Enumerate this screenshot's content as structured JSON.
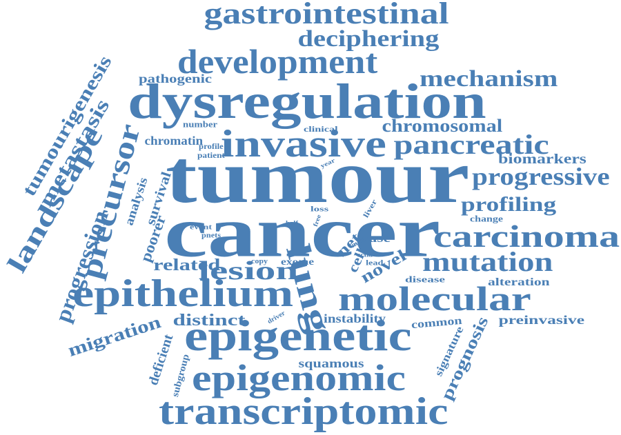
{
  "colors": {
    "word": "#4a7fb5",
    "background": "#ffffff"
  },
  "words": [
    {
      "text": "tumour",
      "weight": 1.0
    },
    {
      "text": "cancer",
      "weight": 0.97
    },
    {
      "text": "dysregulation",
      "weight": 0.7
    },
    {
      "text": "epigenetic",
      "weight": 0.5
    },
    {
      "text": "invasive",
      "weight": 0.46
    },
    {
      "text": "transcriptomic",
      "weight": 0.44
    },
    {
      "text": "epithelium",
      "weight": 0.44
    },
    {
      "text": "epigenomic",
      "weight": 0.42
    },
    {
      "text": "development",
      "weight": 0.4
    },
    {
      "text": "lung",
      "weight": 0.42
    },
    {
      "text": "molecular",
      "weight": 0.4
    },
    {
      "text": "carcinoma",
      "weight": 0.36
    },
    {
      "text": "gastrointestinal",
      "weight": 0.36
    },
    {
      "text": "precursor",
      "weight": 0.34
    },
    {
      "text": "landscape",
      "weight": 0.3
    },
    {
      "text": "mutation",
      "weight": 0.3
    },
    {
      "text": "pancreatic",
      "weight": 0.3
    },
    {
      "text": "lesion",
      "weight": 0.28
    },
    {
      "text": "progressive",
      "weight": 0.26
    },
    {
      "text": "deciphering",
      "weight": 0.25
    },
    {
      "text": "mechanism",
      "weight": 0.24
    },
    {
      "text": "progression",
      "weight": 0.24
    },
    {
      "text": "metastasis",
      "weight": 0.22
    },
    {
      "text": "tumourigenesis",
      "weight": 0.2
    },
    {
      "text": "profiling",
      "weight": 0.2
    },
    {
      "text": "chromosomal",
      "weight": 0.18
    },
    {
      "text": "migration",
      "weight": 0.18
    },
    {
      "text": "distinct",
      "weight": 0.17
    },
    {
      "text": "related",
      "weight": 0.17
    },
    {
      "text": "prognosis",
      "weight": 0.17
    },
    {
      "text": "novel",
      "weight": 0.16
    },
    {
      "text": "poorer",
      "weight": 0.15
    },
    {
      "text": "biomarkers",
      "weight": 0.14
    },
    {
      "text": "squamous",
      "weight": 0.14
    },
    {
      "text": "survival",
      "weight": 0.14
    },
    {
      "text": "pathogenic",
      "weight": 0.14
    },
    {
      "text": "chromatin",
      "weight": 0.14
    },
    {
      "text": "deficient",
      "weight": 0.14
    },
    {
      "text": "preinvasive",
      "weight": 0.14
    },
    {
      "text": "net",
      "weight": 0.14
    },
    {
      "text": "instability",
      "weight": 0.13
    },
    {
      "text": "analysis",
      "weight": 0.13
    },
    {
      "text": "case",
      "weight": 0.13
    },
    {
      "text": "exome",
      "weight": 0.12
    },
    {
      "text": "cell",
      "weight": 0.12
    },
    {
      "text": "signature",
      "weight": 0.12
    },
    {
      "text": "alteration",
      "weight": 0.11
    },
    {
      "text": "common",
      "weight": 0.11
    },
    {
      "text": "subgroup",
      "weight": 0.11
    },
    {
      "text": "number",
      "weight": 0.1
    },
    {
      "text": "disease",
      "weight": 0.1
    },
    {
      "text": "change",
      "weight": 0.1
    },
    {
      "text": "clinical",
      "weight": 0.09
    },
    {
      "text": "profile",
      "weight": 0.09
    },
    {
      "text": "patient",
      "weight": 0.09
    },
    {
      "text": "loss",
      "weight": 0.09
    },
    {
      "text": "liver",
      "weight": 0.09
    },
    {
      "text": "event",
      "weight": 0.09
    },
    {
      "text": "pnets",
      "weight": 0.09
    },
    {
      "text": "lead",
      "weight": 0.09
    },
    {
      "text": "driver",
      "weight": 0.08
    },
    {
      "text": "copy",
      "weight": 0.08
    },
    {
      "text": "most",
      "weight": 0.08
    },
    {
      "text": "free",
      "weight": 0.07
    },
    {
      "text": "year",
      "weight": 0.07
    },
    {
      "text": "half",
      "weight": 0.07
    },
    {
      "text": "scna",
      "weight": 0.07
    }
  ]
}
